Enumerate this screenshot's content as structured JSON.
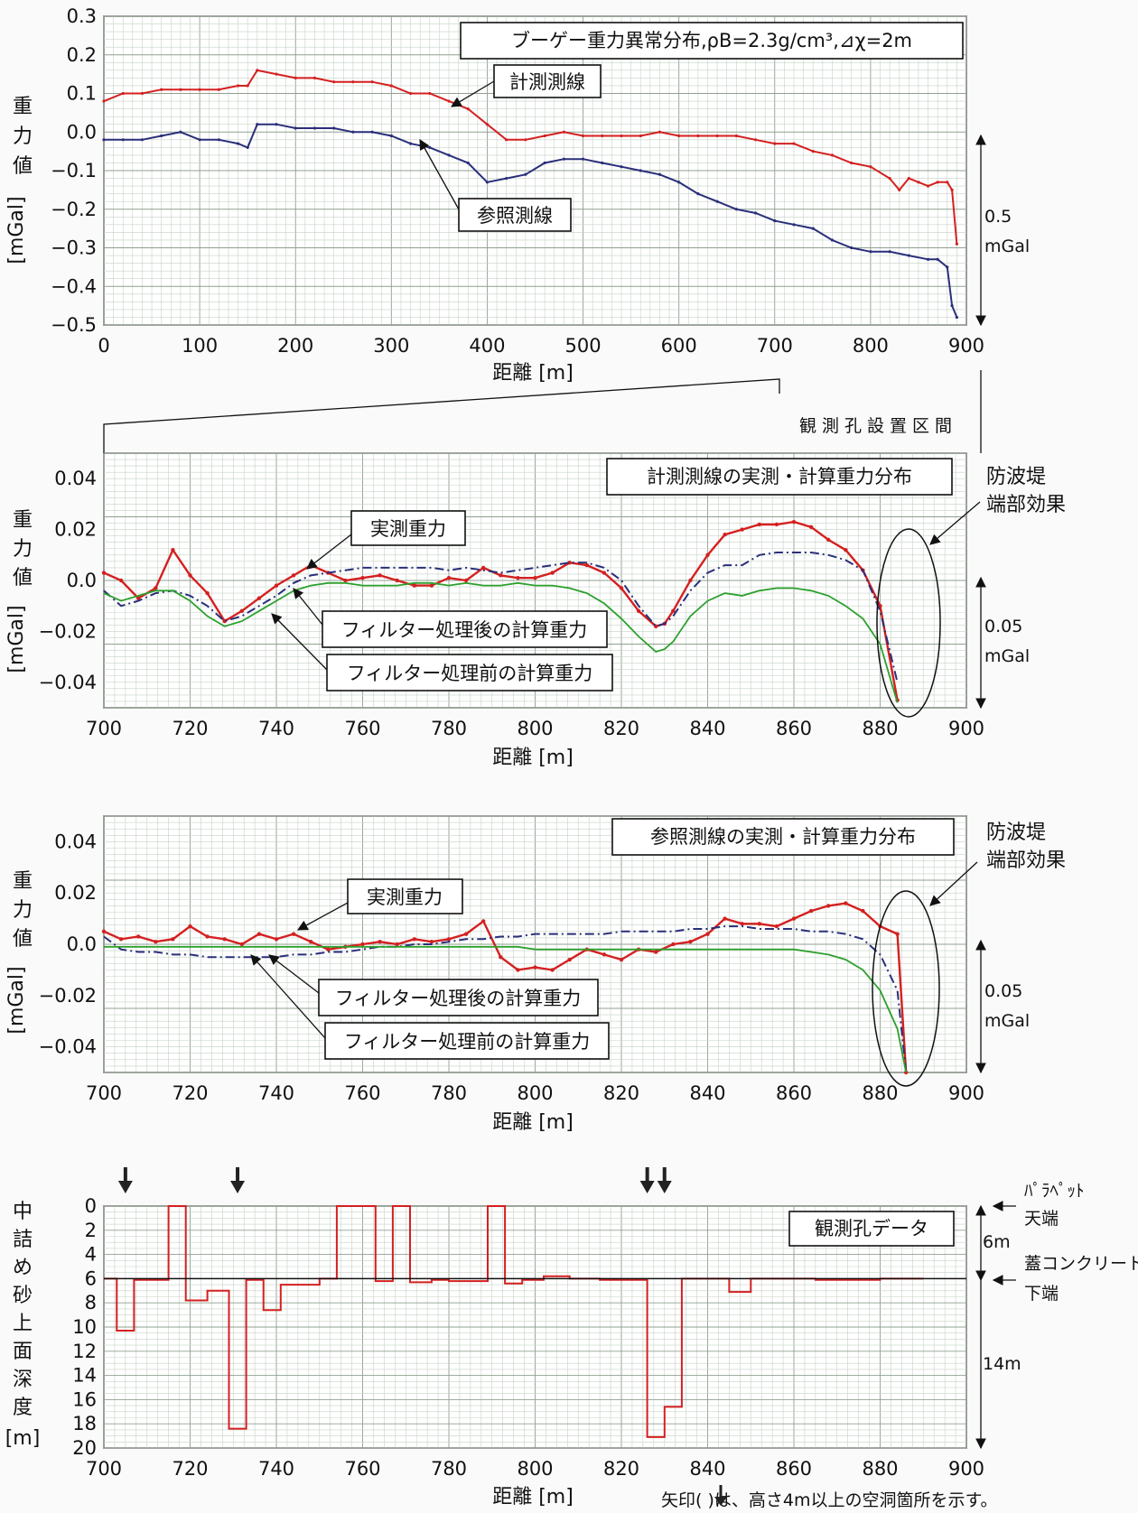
{
  "colors": {
    "measurement_line": "#d42020",
    "reference_line": "#2a2f7a",
    "filtered_calc": "#2a2f7a",
    "unfiltered_calc": "#2ca02c",
    "borehole": "#d42020"
  },
  "chart_data": [
    {
      "type": "scatter",
      "title": "ブーゲー重力異常分布,ρB=2.3g/cm³,⊿χ=2m",
      "xlabel": "距離 [m]",
      "ylabel": [
        "重",
        "力",
        "値",
        "[mGal]"
      ],
      "xlim": [
        0,
        900
      ],
      "ylim": [
        -0.5,
        0.3
      ],
      "x_ticks": [
        "0",
        "100",
        "200",
        "300",
        "400",
        "500",
        "600",
        "700",
        "800",
        "900"
      ],
      "y_ticks": [
        "0.3",
        "0.2",
        "0.1",
        "0.0",
        "−0.1",
        "−0.2",
        "−0.3",
        "−0.4",
        "−0.5"
      ],
      "scale_note": [
        "0.5",
        "mGal"
      ],
      "series": [
        {
          "name": "計測測線",
          "color": "#d42020",
          "x": [
            0,
            20,
            40,
            60,
            80,
            100,
            120,
            140,
            150,
            160,
            180,
            200,
            220,
            240,
            260,
            280,
            300,
            320,
            340,
            360,
            380,
            400,
            420,
            440,
            460,
            480,
            500,
            520,
            540,
            560,
            580,
            600,
            620,
            640,
            660,
            680,
            700,
            720,
            740,
            760,
            780,
            800,
            820,
            830,
            840,
            850,
            860,
            870,
            880,
            885,
            890
          ],
          "y": [
            0.08,
            0.1,
            0.1,
            0.11,
            0.11,
            0.11,
            0.11,
            0.12,
            0.12,
            0.16,
            0.15,
            0.14,
            0.14,
            0.13,
            0.13,
            0.13,
            0.12,
            0.1,
            0.1,
            0.08,
            0.06,
            0.02,
            -0.02,
            -0.02,
            -0.01,
            0.0,
            -0.01,
            -0.01,
            -0.01,
            -0.01,
            0.0,
            -0.01,
            -0.01,
            -0.01,
            -0.01,
            -0.02,
            -0.03,
            -0.03,
            -0.05,
            -0.06,
            -0.08,
            -0.09,
            -0.12,
            -0.15,
            -0.12,
            -0.13,
            -0.14,
            -0.13,
            -0.13,
            -0.15,
            -0.29
          ]
        },
        {
          "name": "参照測線",
          "color": "#2a2f7a",
          "x": [
            0,
            20,
            40,
            60,
            80,
            100,
            120,
            140,
            150,
            160,
            180,
            200,
            220,
            240,
            260,
            280,
            300,
            320,
            340,
            360,
            380,
            400,
            420,
            440,
            460,
            480,
            500,
            520,
            540,
            560,
            580,
            600,
            620,
            640,
            660,
            680,
            700,
            720,
            740,
            760,
            780,
            800,
            820,
            840,
            860,
            870,
            880,
            885,
            890
          ],
          "y": [
            -0.02,
            -0.02,
            -0.02,
            -0.01,
            0.0,
            -0.02,
            -0.02,
            -0.03,
            -0.04,
            0.02,
            0.02,
            0.01,
            0.01,
            0.01,
            0.0,
            0.0,
            -0.01,
            -0.03,
            -0.04,
            -0.06,
            -0.08,
            -0.13,
            -0.12,
            -0.11,
            -0.08,
            -0.07,
            -0.07,
            -0.08,
            -0.09,
            -0.1,
            -0.11,
            -0.13,
            -0.16,
            -0.18,
            -0.2,
            -0.21,
            -0.23,
            -0.24,
            -0.25,
            -0.28,
            -0.3,
            -0.31,
            -0.31,
            -0.32,
            -0.33,
            -0.33,
            -0.35,
            -0.45,
            -0.48
          ]
        }
      ],
      "annotations": [
        "計測測線",
        "参照測線"
      ]
    },
    {
      "type": "line",
      "title": "計測測線の実測・計算重力分布",
      "xlabel": "距離 [m]",
      "ylabel": [
        "重",
        "力",
        "値",
        "[mGal]"
      ],
      "xlim": [
        700,
        900
      ],
      "ylim": [
        -0.05,
        0.05
      ],
      "x_ticks": [
        "700",
        "720",
        "740",
        "760",
        "780",
        "800",
        "820",
        "840",
        "860",
        "880",
        "900"
      ],
      "y_ticks": [
        "0.04",
        "0.02",
        "0.0",
        "−0.02",
        "−0.04"
      ],
      "scale_note": [
        "0.05",
        "mGal"
      ],
      "x": [
        700,
        704,
        708,
        712,
        716,
        720,
        724,
        728,
        732,
        736,
        740,
        744,
        748,
        752,
        756,
        760,
        764,
        768,
        772,
        776,
        780,
        784,
        788,
        792,
        796,
        800,
        804,
        808,
        812,
        816,
        820,
        824,
        828,
        830,
        832,
        836,
        840,
        844,
        848,
        852,
        856,
        860,
        864,
        868,
        872,
        876,
        880,
        884
      ],
      "series": [
        {
          "name": "実測重力",
          "color": "#d42020",
          "values": [
            0.003,
            0.0,
            -0.007,
            -0.003,
            0.012,
            0.002,
            -0.005,
            -0.016,
            -0.012,
            -0.007,
            -0.002,
            0.002,
            0.006,
            0.003,
            0.0,
            0.001,
            0.002,
            0.0,
            -0.002,
            -0.002,
            0.001,
            0.0,
            0.005,
            0.002,
            0.001,
            0.001,
            0.003,
            0.007,
            0.006,
            0.003,
            -0.003,
            -0.012,
            -0.018,
            -0.017,
            -0.012,
            0.0,
            0.01,
            0.018,
            0.02,
            0.022,
            0.022,
            0.023,
            0.021,
            0.016,
            0.012,
            0.004,
            -0.01,
            -0.047
          ]
        },
        {
          "name": "フィルター処理後の計算重力",
          "color": "#2a2f7a",
          "values": [
            -0.004,
            -0.01,
            -0.008,
            -0.005,
            -0.004,
            -0.006,
            -0.01,
            -0.016,
            -0.014,
            -0.01,
            -0.006,
            -0.001,
            0.002,
            0.003,
            0.004,
            0.005,
            0.005,
            0.005,
            0.005,
            0.005,
            0.004,
            0.005,
            0.004,
            0.003,
            0.004,
            0.005,
            0.006,
            0.007,
            0.007,
            0.005,
            0.0,
            -0.01,
            -0.018,
            -0.017,
            -0.014,
            -0.004,
            0.003,
            0.006,
            0.006,
            0.01,
            0.011,
            0.011,
            0.011,
            0.01,
            0.008,
            0.004,
            -0.012,
            -0.04
          ]
        },
        {
          "name": "フィルター処理前の計算重力",
          "color": "#2ca02c",
          "values": [
            -0.005,
            -0.008,
            -0.006,
            -0.004,
            -0.004,
            -0.008,
            -0.014,
            -0.018,
            -0.016,
            -0.012,
            -0.008,
            -0.004,
            -0.002,
            -0.001,
            -0.001,
            -0.002,
            -0.002,
            -0.002,
            -0.001,
            -0.001,
            -0.002,
            -0.001,
            -0.002,
            -0.002,
            -0.001,
            -0.002,
            -0.002,
            -0.003,
            -0.005,
            -0.009,
            -0.015,
            -0.022,
            -0.028,
            -0.027,
            -0.024,
            -0.014,
            -0.008,
            -0.005,
            -0.006,
            -0.004,
            -0.003,
            -0.003,
            -0.004,
            -0.006,
            -0.01,
            -0.015,
            -0.025,
            -0.048
          ]
        }
      ],
      "annotations": [
        "実測重力",
        "フィルター処理後の計算重力",
        "フィルター処理前の計算重力",
        "防波堤",
        "端部効果",
        "観測孔設置区間"
      ]
    },
    {
      "type": "line",
      "title": "参照測線の実測・計算重力分布",
      "xlabel": "距離 [m]",
      "ylabel": [
        "重",
        "力",
        "値",
        "[mGal]"
      ],
      "xlim": [
        700,
        900
      ],
      "ylim": [
        -0.05,
        0.05
      ],
      "x_ticks": [
        "700",
        "720",
        "740",
        "760",
        "780",
        "800",
        "820",
        "840",
        "860",
        "880",
        "900"
      ],
      "y_ticks": [
        "0.04",
        "0.02",
        "0.0",
        "−0.02",
        "−0.04"
      ],
      "scale_note": [
        "0.05",
        "mGal"
      ],
      "x": [
        700,
        704,
        708,
        712,
        716,
        720,
        724,
        728,
        732,
        736,
        740,
        744,
        748,
        752,
        756,
        760,
        764,
        768,
        772,
        776,
        780,
        784,
        788,
        792,
        796,
        800,
        804,
        808,
        812,
        816,
        820,
        824,
        828,
        832,
        836,
        840,
        844,
        848,
        852,
        856,
        860,
        864,
        868,
        872,
        876,
        880,
        884,
        886
      ],
      "series": [
        {
          "name": "実測重力",
          "color": "#d42020",
          "values": [
            0.005,
            0.002,
            0.003,
            0.001,
            0.002,
            0.007,
            0.003,
            0.002,
            0.0,
            0.004,
            0.002,
            0.004,
            0.001,
            -0.002,
            -0.001,
            0.0,
            0.001,
            0.0,
            0.002,
            0.001,
            0.002,
            0.004,
            0.009,
            -0.005,
            -0.01,
            -0.009,
            -0.01,
            -0.006,
            -0.002,
            -0.004,
            -0.006,
            -0.002,
            -0.003,
            0.0,
            0.001,
            0.004,
            0.01,
            0.008,
            0.008,
            0.007,
            0.01,
            0.013,
            0.015,
            0.016,
            0.013,
            0.007,
            0.004,
            -0.05
          ]
        },
        {
          "name": "フィルター処理後の計算重力",
          "color": "#2a2f7a",
          "values": [
            0.003,
            -0.002,
            -0.003,
            -0.003,
            -0.004,
            -0.004,
            -0.005,
            -0.005,
            -0.005,
            -0.005,
            -0.005,
            -0.004,
            -0.004,
            -0.003,
            -0.003,
            -0.002,
            -0.001,
            -0.001,
            0.0,
            0.0,
            0.001,
            0.002,
            0.002,
            0.003,
            0.003,
            0.004,
            0.004,
            0.004,
            0.004,
            0.004,
            0.005,
            0.005,
            0.005,
            0.005,
            0.006,
            0.006,
            0.007,
            0.007,
            0.006,
            0.006,
            0.006,
            0.005,
            0.005,
            0.004,
            0.002,
            -0.004,
            -0.018,
            -0.05
          ]
        },
        {
          "name": "フィルター処理前の計算重力",
          "color": "#2ca02c",
          "values": [
            -0.001,
            -0.001,
            -0.001,
            -0.001,
            -0.001,
            -0.001,
            -0.001,
            -0.001,
            -0.001,
            -0.001,
            -0.001,
            -0.001,
            -0.001,
            -0.001,
            -0.001,
            -0.001,
            -0.001,
            -0.001,
            -0.001,
            -0.001,
            -0.001,
            -0.001,
            -0.001,
            -0.001,
            -0.001,
            -0.002,
            -0.002,
            -0.002,
            -0.002,
            -0.002,
            -0.002,
            -0.002,
            -0.002,
            -0.002,
            -0.002,
            -0.002,
            -0.002,
            -0.002,
            -0.002,
            -0.002,
            -0.002,
            -0.003,
            -0.004,
            -0.006,
            -0.01,
            -0.018,
            -0.033,
            -0.05
          ]
        }
      ],
      "annotations": [
        "実測重力",
        "フィルター処理後の計算重力",
        "フィルター処理前の計算重力",
        "防波堤",
        "端部効果"
      ]
    },
    {
      "type": "line",
      "title": "観測孔データ",
      "xlabel": "距離 [m]",
      "ylabel": [
        "中",
        "詰",
        "め",
        "砂",
        "上",
        "面",
        "深",
        "度",
        "[m]"
      ],
      "xlim": [
        700,
        900
      ],
      "ylim": [
        20,
        0
      ],
      "x_ticks": [
        "700",
        "720",
        "740",
        "760",
        "780",
        "800",
        "820",
        "840",
        "860",
        "880",
        "900"
      ],
      "y_ticks": [
        "0",
        "2",
        "4",
        "6",
        "8",
        "10",
        "12",
        "14",
        "16",
        "18",
        "20"
      ],
      "series": [
        {
          "name": "観測孔データ",
          "color": "#d42020",
          "x": [
            700,
            703,
            703,
            707,
            707,
            715,
            715,
            719,
            719,
            724,
            724,
            729,
            729,
            733,
            733,
            737,
            737,
            741,
            741,
            750,
            750,
            754,
            754,
            763,
            763,
            767,
            767,
            771,
            771,
            776,
            776,
            780,
            780,
            789,
            789,
            793,
            793,
            797,
            797,
            802,
            802,
            808,
            808,
            815,
            815,
            826,
            826,
            830,
            830,
            834,
            834,
            845,
            845,
            850,
            850,
            865,
            865,
            880,
            880,
            890
          ],
          "y": [
            6.0,
            6.0,
            10.3,
            10.3,
            6.1,
            6.1,
            0.0,
            0.0,
            7.8,
            7.8,
            7.0,
            7.0,
            18.4,
            18.4,
            6.1,
            6.1,
            8.6,
            8.6,
            6.5,
            6.5,
            6.0,
            6.0,
            0.0,
            0.0,
            6.2,
            6.2,
            0.0,
            0.0,
            6.3,
            6.3,
            6.1,
            6.1,
            6.2,
            6.2,
            0.0,
            0.0,
            6.4,
            6.4,
            6.1,
            6.1,
            5.8,
            5.8,
            6.0,
            6.0,
            6.1,
            6.1,
            19.1,
            19.1,
            16.6,
            16.6,
            6.0,
            6.0,
            7.1,
            7.1,
            6.0,
            6.0,
            6.1,
            6.1,
            6.0,
            6.0
          ]
        }
      ],
      "cavity_markers_x": [
        705,
        731,
        826,
        830
      ],
      "side_labels": {
        "top": [
          "ﾊﾟﾗﾍﾟｯﾄ",
          "天端"
        ],
        "mid": [
          "蓋コンクリート",
          "下端"
        ],
        "h1": "6m",
        "h2": "14m"
      },
      "footnote": "矢印( )は、高さ4m以上の空洞箇所を示す。"
    }
  ]
}
